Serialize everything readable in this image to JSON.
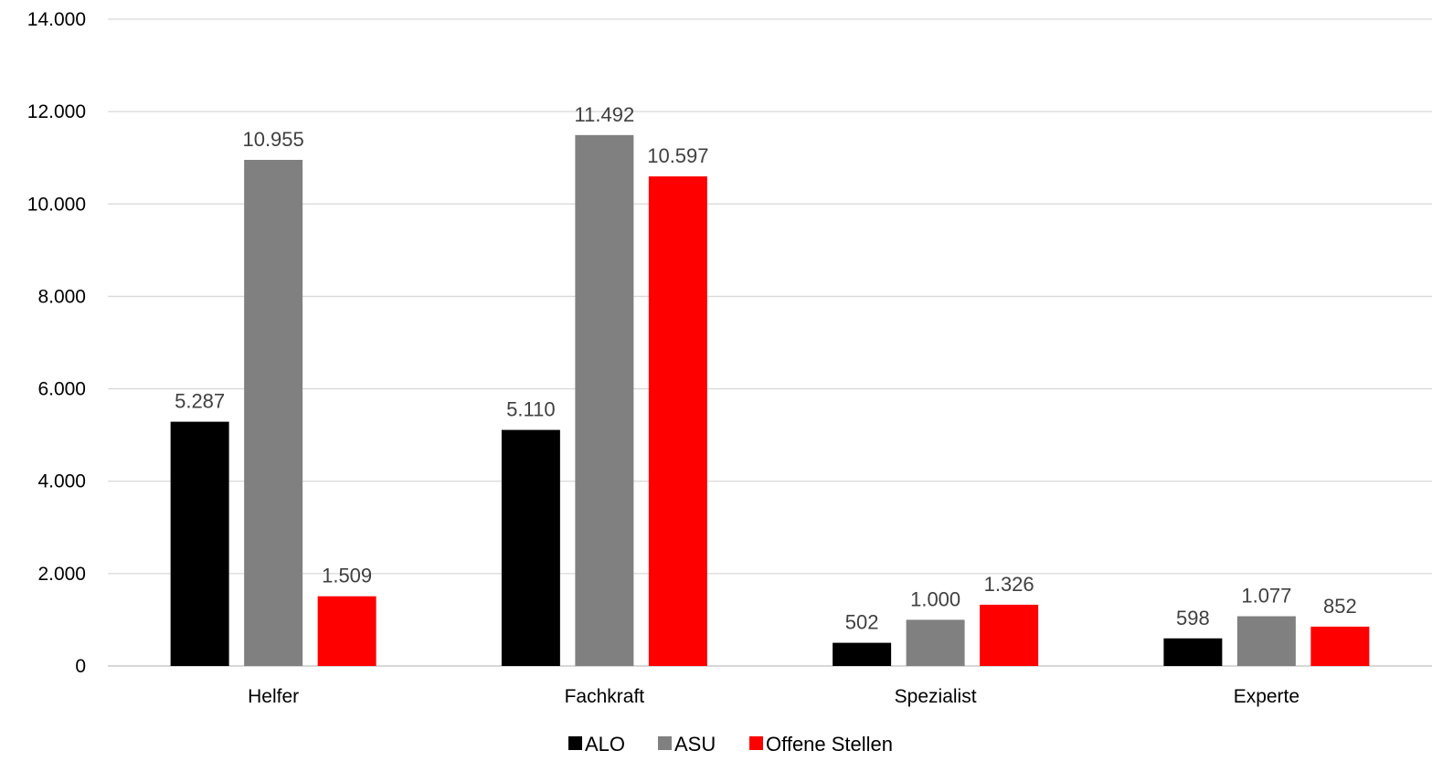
{
  "chart_data": {
    "type": "bar",
    "categories": [
      "Helfer",
      "Fachkraft",
      "Spezialist",
      "Experte"
    ],
    "series": [
      {
        "name": "ALO",
        "color": "#000000",
        "values": [
          5287,
          5110,
          502,
          598
        ],
        "labels": [
          "5.287",
          "5.110",
          "502",
          "598"
        ]
      },
      {
        "name": "ASU",
        "color": "#808080",
        "values": [
          10955,
          11492,
          1000,
          1077
        ],
        "labels": [
          "10.955",
          "11.492",
          "1.000",
          "1.077"
        ]
      },
      {
        "name": "Offene Stellen",
        "color": "#ff0000",
        "values": [
          1509,
          10597,
          1326,
          852
        ],
        "labels": [
          "1.509",
          "10.597",
          "1.326",
          "852"
        ]
      }
    ],
    "ylim": [
      0,
      14000
    ],
    "yticks": [
      0,
      2000,
      4000,
      6000,
      8000,
      10000,
      12000,
      14000
    ],
    "ytick_labels": [
      "0",
      "2.000",
      "4.000",
      "6.000",
      "8.000",
      "10.000",
      "12.000",
      "14.000"
    ],
    "grid": true,
    "legend": "bottom-center"
  }
}
